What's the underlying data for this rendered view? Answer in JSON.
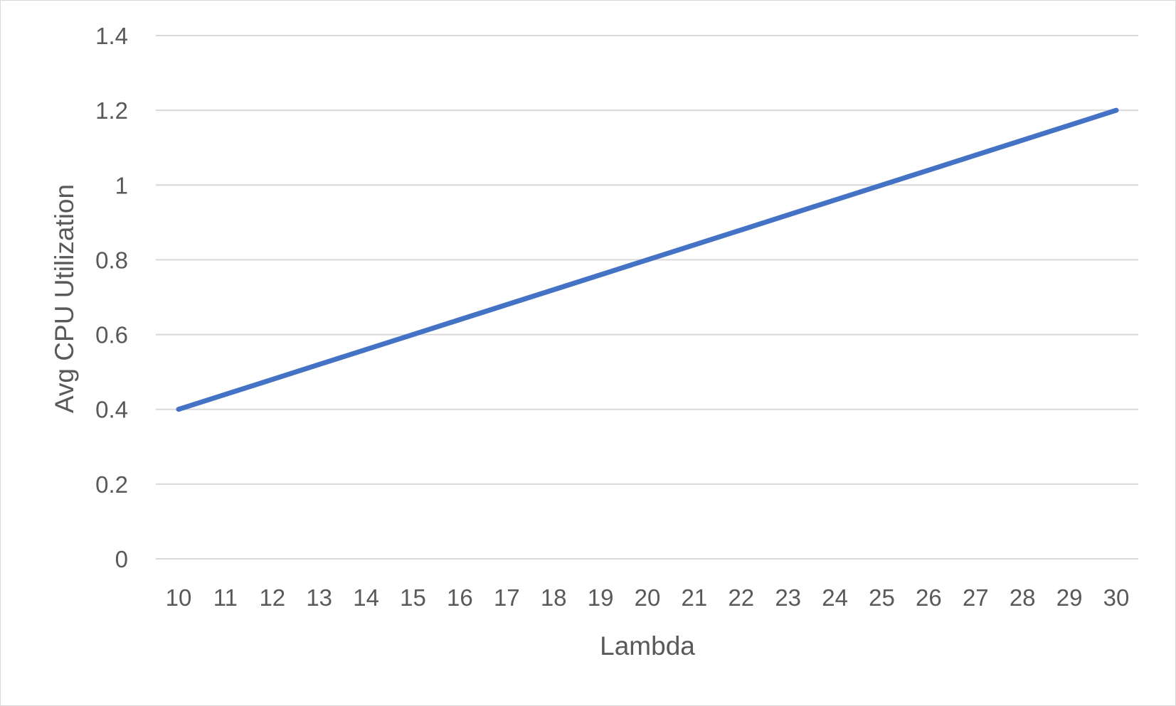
{
  "chart_data": {
    "type": "line",
    "title": "",
    "xlabel": "Lambda",
    "ylabel": "Avg CPU Utilization",
    "categories": [
      "10",
      "11",
      "12",
      "13",
      "14",
      "15",
      "16",
      "17",
      "18",
      "19",
      "20",
      "21",
      "22",
      "23",
      "24",
      "25",
      "26",
      "27",
      "28",
      "29",
      "30"
    ],
    "y_ticks": [
      "0",
      "0.2",
      "0.4",
      "0.6",
      "0.8",
      "1",
      "1.2",
      "1.4"
    ],
    "ylim": [
      0,
      1.4
    ],
    "grid": true,
    "legend": "none",
    "series": [
      {
        "values": [
          0.4,
          0.44,
          0.48,
          0.52,
          0.56,
          0.6,
          0.64,
          0.68,
          0.72,
          0.76,
          0.8,
          0.84,
          0.88,
          0.92,
          0.96,
          1.0,
          1.04,
          1.08,
          1.12,
          1.16,
          1.2
        ],
        "color": "#4472C4"
      }
    ],
    "colors": {
      "line": "#4472C4",
      "grid": "#d9d9d9",
      "text": "#595959"
    }
  }
}
